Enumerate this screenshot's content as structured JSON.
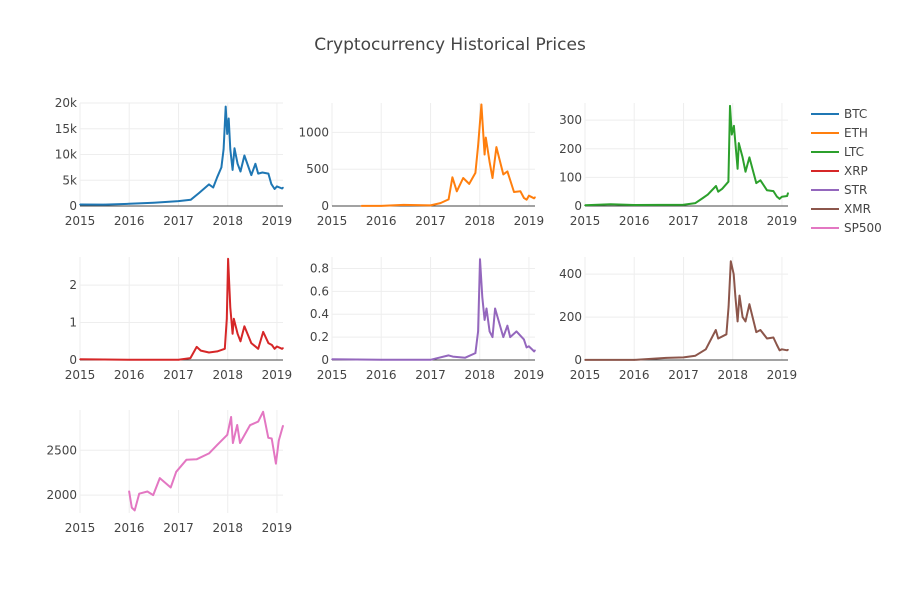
{
  "title": "Cryptocurrency Historical Prices",
  "chart_data": {
    "type": "line",
    "title": "Cryptocurrency Historical Prices",
    "legend": {
      "position": "right",
      "entries": [
        "BTC",
        "ETH",
        "LTC",
        "XRP",
        "STR",
        "XMR",
        "SP500"
      ]
    },
    "grid": true,
    "x_tick_labels": [
      "2015",
      "2016",
      "2017",
      "2018",
      "2019"
    ],
    "x_range": [
      "2015-01-01",
      "2019-02-15"
    ],
    "subplots": [
      {
        "name": "BTC",
        "color": "#1f77b4",
        "ylim": [
          0,
          20000
        ],
        "y_ticks": [
          0,
          5000,
          10000,
          15000,
          20000
        ],
        "y_tick_labels": [
          "0",
          "5k",
          "10k",
          "15k",
          "20k"
        ],
        "points": [
          [
            "2015-01-01",
            300
          ],
          [
            "2015-07-01",
            280
          ],
          [
            "2016-01-01",
            430
          ],
          [
            "2016-07-01",
            650
          ],
          [
            "2017-01-01",
            950
          ],
          [
            "2017-04-01",
            1200
          ],
          [
            "2017-06-01",
            2500
          ],
          [
            "2017-08-15",
            4200
          ],
          [
            "2017-09-15",
            3600
          ],
          [
            "2017-10-15",
            5600
          ],
          [
            "2017-11-15",
            7500
          ],
          [
            "2017-12-01",
            11000
          ],
          [
            "2017-12-17",
            19300
          ],
          [
            "2017-12-28",
            14000
          ],
          [
            "2018-01-08",
            17000
          ],
          [
            "2018-01-20",
            11000
          ],
          [
            "2018-02-06",
            7000
          ],
          [
            "2018-02-20",
            11200
          ],
          [
            "2018-03-15",
            8200
          ],
          [
            "2018-04-06",
            6700
          ],
          [
            "2018-05-05",
            9800
          ],
          [
            "2018-06-25",
            6000
          ],
          [
            "2018-07-25",
            8200
          ],
          [
            "2018-08-15",
            6300
          ],
          [
            "2018-09-15",
            6500
          ],
          [
            "2018-10-30",
            6300
          ],
          [
            "2018-11-20",
            4300
          ],
          [
            "2018-12-15",
            3300
          ],
          [
            "2019-01-01",
            3800
          ],
          [
            "2019-02-08",
            3400
          ],
          [
            "2019-02-15",
            3600
          ]
        ]
      },
      {
        "name": "ETH",
        "color": "#ff7f0e",
        "ylim": [
          0,
          1400
        ],
        "y_ticks": [
          0,
          500,
          1000
        ],
        "y_tick_labels": [
          "0",
          "500",
          "1000"
        ],
        "points": [
          [
            "2015-08-07",
            2
          ],
          [
            "2016-01-01",
            1
          ],
          [
            "2016-06-15",
            15
          ],
          [
            "2017-01-01",
            8
          ],
          [
            "2017-03-15",
            40
          ],
          [
            "2017-05-15",
            90
          ],
          [
            "2017-06-12",
            390
          ],
          [
            "2017-07-15",
            200
          ],
          [
            "2017-08-31",
            380
          ],
          [
            "2017-10-15",
            300
          ],
          [
            "2017-11-30",
            450
          ],
          [
            "2017-12-20",
            820
          ],
          [
            "2018-01-13",
            1380
          ],
          [
            "2018-02-06",
            700
          ],
          [
            "2018-02-15",
            930
          ],
          [
            "2018-03-15",
            600
          ],
          [
            "2018-04-06",
            380
          ],
          [
            "2018-05-05",
            800
          ],
          [
            "2018-06-25",
            430
          ],
          [
            "2018-07-25",
            470
          ],
          [
            "2018-09-12",
            190
          ],
          [
            "2018-10-30",
            200
          ],
          [
            "2018-11-25",
            110
          ],
          [
            "2018-12-15",
            85
          ],
          [
            "2019-01-01",
            140
          ],
          [
            "2019-02-08",
            105
          ],
          [
            "2019-02-15",
            120
          ]
        ]
      },
      {
        "name": "LTC",
        "color": "#2ca02c",
        "ylim": [
          0,
          360
        ],
        "y_ticks": [
          0,
          100,
          200,
          300
        ],
        "y_tick_labels": [
          "0",
          "100",
          "200",
          "300"
        ],
        "points": [
          [
            "2015-01-01",
            2.5
          ],
          [
            "2015-07-10",
            6
          ],
          [
            "2016-01-01",
            3.5
          ],
          [
            "2016-07-01",
            4
          ],
          [
            "2017-01-01",
            4.5
          ],
          [
            "2017-03-30",
            10
          ],
          [
            "2017-05-25",
            28
          ],
          [
            "2017-06-30",
            40
          ],
          [
            "2017-08-30",
            70
          ],
          [
            "2017-09-15",
            50
          ],
          [
            "2017-10-15",
            60
          ],
          [
            "2017-11-30",
            85
          ],
          [
            "2017-12-12",
            350
          ],
          [
            "2017-12-25",
            250
          ],
          [
            "2018-01-10",
            280
          ],
          [
            "2018-02-06",
            130
          ],
          [
            "2018-02-15",
            220
          ],
          [
            "2018-03-15",
            170
          ],
          [
            "2018-04-06",
            120
          ],
          [
            "2018-05-05",
            170
          ],
          [
            "2018-06-25",
            80
          ],
          [
            "2018-07-25",
            90
          ],
          [
            "2018-09-12",
            55
          ],
          [
            "2018-10-30",
            52
          ],
          [
            "2018-11-25",
            33
          ],
          [
            "2018-12-15",
            25
          ],
          [
            "2019-01-01",
            32
          ],
          [
            "2019-02-08",
            35
          ],
          [
            "2019-02-15",
            45
          ]
        ]
      },
      {
        "name": "XRP",
        "color": "#d62728",
        "ylim": [
          0,
          2.75
        ],
        "y_ticks": [
          0,
          1,
          2
        ],
        "y_tick_labels": [
          "0",
          "1",
          "2"
        ],
        "points": [
          [
            "2015-01-01",
            0.02
          ],
          [
            "2016-01-01",
            0.006
          ],
          [
            "2017-01-01",
            0.006
          ],
          [
            "2017-03-30",
            0.05
          ],
          [
            "2017-05-16",
            0.35
          ],
          [
            "2017-06-15",
            0.25
          ],
          [
            "2017-08-15",
            0.2
          ],
          [
            "2017-10-15",
            0.23
          ],
          [
            "2017-12-10",
            0.3
          ],
          [
            "2017-12-25",
            1.1
          ],
          [
            "2018-01-04",
            2.7
          ],
          [
            "2018-01-20",
            1.4
          ],
          [
            "2018-02-06",
            0.7
          ],
          [
            "2018-02-15",
            1.1
          ],
          [
            "2018-03-15",
            0.7
          ],
          [
            "2018-04-06",
            0.5
          ],
          [
            "2018-05-05",
            0.9
          ],
          [
            "2018-06-25",
            0.45
          ],
          [
            "2018-08-15",
            0.3
          ],
          [
            "2018-09-21",
            0.75
          ],
          [
            "2018-10-30",
            0.45
          ],
          [
            "2018-11-25",
            0.4
          ],
          [
            "2018-12-15",
            0.3
          ],
          [
            "2019-01-01",
            0.36
          ],
          [
            "2019-02-08",
            0.3
          ],
          [
            "2019-02-15",
            0.32
          ]
        ]
      },
      {
        "name": "STR",
        "color": "#9467bd",
        "ylim": [
          0,
          0.9
        ],
        "y_ticks": [
          0,
          0.2,
          0.4,
          0.6,
          0.8
        ],
        "y_tick_labels": [
          "0",
          "0.2",
          "0.4",
          "0.6",
          "0.8"
        ],
        "points": [
          [
            "2015-01-01",
            0.006
          ],
          [
            "2016-01-01",
            0.002
          ],
          [
            "2017-01-01",
            0.002
          ],
          [
            "2017-05-15",
            0.04
          ],
          [
            "2017-06-15",
            0.03
          ],
          [
            "2017-09-15",
            0.02
          ],
          [
            "2017-11-30",
            0.06
          ],
          [
            "2017-12-20",
            0.25
          ],
          [
            "2018-01-03",
            0.88
          ],
          [
            "2018-01-20",
            0.55
          ],
          [
            "2018-02-06",
            0.35
          ],
          [
            "2018-02-20",
            0.45
          ],
          [
            "2018-03-15",
            0.25
          ],
          [
            "2018-04-06",
            0.2
          ],
          [
            "2018-04-25",
            0.45
          ],
          [
            "2018-06-25",
            0.2
          ],
          [
            "2018-07-25",
            0.3
          ],
          [
            "2018-08-15",
            0.2
          ],
          [
            "2018-10-01",
            0.25
          ],
          [
            "2018-11-25",
            0.18
          ],
          [
            "2018-12-15",
            0.11
          ],
          [
            "2019-01-01",
            0.12
          ],
          [
            "2019-02-08",
            0.075
          ],
          [
            "2019-02-15",
            0.085
          ]
        ]
      },
      {
        "name": "XMR",
        "color": "#8c564b",
        "ylim": [
          0,
          480
        ],
        "y_ticks": [
          0,
          200,
          400
        ],
        "y_tick_labels": [
          "0",
          "200",
          "400"
        ],
        "points": [
          [
            "2015-01-01",
            0.5
          ],
          [
            "2016-01-01",
            0.5
          ],
          [
            "2016-08-25",
            10
          ],
          [
            "2017-01-01",
            12
          ],
          [
            "2017-03-30",
            20
          ],
          [
            "2017-06-15",
            50
          ],
          [
            "2017-08-28",
            140
          ],
          [
            "2017-09-15",
            100
          ],
          [
            "2017-11-15",
            120
          ],
          [
            "2017-12-01",
            250
          ],
          [
            "2017-12-18",
            460
          ],
          [
            "2018-01-08",
            400
          ],
          [
            "2018-01-20",
            300
          ],
          [
            "2018-02-06",
            180
          ],
          [
            "2018-02-20",
            300
          ],
          [
            "2018-03-15",
            200
          ],
          [
            "2018-04-06",
            180
          ],
          [
            "2018-05-05",
            260
          ],
          [
            "2018-06-25",
            130
          ],
          [
            "2018-07-25",
            140
          ],
          [
            "2018-09-12",
            100
          ],
          [
            "2018-10-30",
            105
          ],
          [
            "2018-11-25",
            70
          ],
          [
            "2018-12-15",
            45
          ],
          [
            "2019-01-01",
            50
          ],
          [
            "2019-02-08",
            45
          ],
          [
            "2019-02-15",
            48
          ]
        ]
      },
      {
        "name": "SP500",
        "color": "#e377c2",
        "ylim": [
          1800,
          2950
        ],
        "y_ticks": [
          2000,
          2500
        ],
        "y_tick_labels": [
          "2000",
          "2500"
        ],
        "points": [
          [
            "2015-12-31",
            2043
          ],
          [
            "2016-01-20",
            1860
          ],
          [
            "2016-02-11",
            1829
          ],
          [
            "2016-03-15",
            2015
          ],
          [
            "2016-05-15",
            2040
          ],
          [
            "2016-06-27",
            2000
          ],
          [
            "2016-08-15",
            2190
          ],
          [
            "2016-11-04",
            2085
          ],
          [
            "2016-12-15",
            2260
          ],
          [
            "2017-03-01",
            2395
          ],
          [
            "2017-05-15",
            2400
          ],
          [
            "2017-08-15",
            2465
          ],
          [
            "2017-10-15",
            2560
          ],
          [
            "2017-12-29",
            2673
          ],
          [
            "2018-01-26",
            2872
          ],
          [
            "2018-02-08",
            2581
          ],
          [
            "2018-03-12",
            2783
          ],
          [
            "2018-04-02",
            2581
          ],
          [
            "2018-06-15",
            2780
          ],
          [
            "2018-08-15",
            2820
          ],
          [
            "2018-09-20",
            2930
          ],
          [
            "2018-10-29",
            2640
          ],
          [
            "2018-11-23",
            2632
          ],
          [
            "2018-12-24",
            2351
          ],
          [
            "2019-01-15",
            2610
          ],
          [
            "2019-02-15",
            2775
          ]
        ]
      }
    ]
  }
}
